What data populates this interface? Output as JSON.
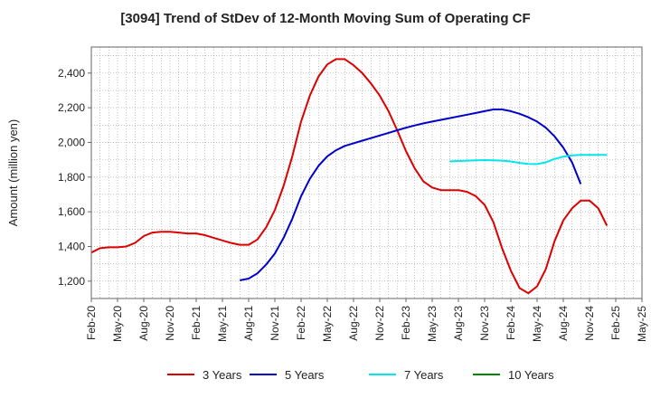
{
  "chart_data": {
    "type": "line",
    "title": "[3094]  Trend of StDev of 12-Month Moving Sum of Operating CF",
    "ylabel": "Amount (million yen)",
    "xlabel": "",
    "ylim": [
      1100,
      2550
    ],
    "yticks": [
      1200,
      1400,
      1600,
      1800,
      2000,
      2200,
      2400
    ],
    "ytick_labels": [
      "1,200",
      "1,400",
      "1,600",
      "1,800",
      "2,000",
      "2,200",
      "2,400"
    ],
    "xticks": [
      "Feb-20",
      "May-20",
      "Aug-20",
      "Nov-20",
      "Feb-21",
      "May-21",
      "Aug-21",
      "Nov-21",
      "Feb-22",
      "May-22",
      "Aug-22",
      "Nov-22",
      "Feb-23",
      "May-23",
      "Aug-23",
      "Nov-23",
      "Feb-24",
      "May-24",
      "Aug-24",
      "Nov-24",
      "Feb-25",
      "May-25"
    ],
    "x_start": "Feb-20",
    "grid": true,
    "legend_position": "bottom",
    "series": [
      {
        "name": "3 Years",
        "color": "#dd0000",
        "start": "Feb-20",
        "values": [
          1365,
          1390,
          1395,
          1395,
          1400,
          1420,
          1460,
          1480,
          1485,
          1485,
          1480,
          1475,
          1475,
          1465,
          1450,
          1435,
          1420,
          1410,
          1410,
          1440,
          1510,
          1610,
          1750,
          1920,
          2120,
          2270,
          2380,
          2450,
          2480,
          2480,
          2445,
          2400,
          2340,
          2270,
          2180,
          2070,
          1950,
          1850,
          1775,
          1740,
          1725,
          1725,
          1725,
          1715,
          1690,
          1640,
          1540,
          1390,
          1260,
          1160,
          1130,
          1170,
          1270,
          1430,
          1550,
          1620,
          1665,
          1665,
          1620,
          1520
        ]
      },
      {
        "name": "5 Years",
        "color": "#0000cc",
        "start": "Jul-21",
        "values": [
          1205,
          1215,
          1245,
          1295,
          1360,
          1450,
          1560,
          1690,
          1790,
          1865,
          1920,
          1955,
          1980,
          1995,
          2010,
          2025,
          2040,
          2055,
          2070,
          2085,
          2098,
          2110,
          2120,
          2130,
          2140,
          2150,
          2160,
          2170,
          2180,
          2190,
          2190,
          2180,
          2165,
          2145,
          2120,
          2085,
          2035,
          1970,
          1885,
          1760
        ]
      },
      {
        "name": "7 Years",
        "color": "#00e5ee",
        "start": "Jul-23",
        "values": [
          1890,
          1893,
          1895,
          1897,
          1898,
          1897,
          1895,
          1890,
          1882,
          1876,
          1875,
          1885,
          1905,
          1918,
          1925,
          1928,
          1928,
          1928,
          1928
        ]
      },
      {
        "name": "10 Years",
        "color": "#008800",
        "start": "Feb-25",
        "values": []
      }
    ]
  }
}
